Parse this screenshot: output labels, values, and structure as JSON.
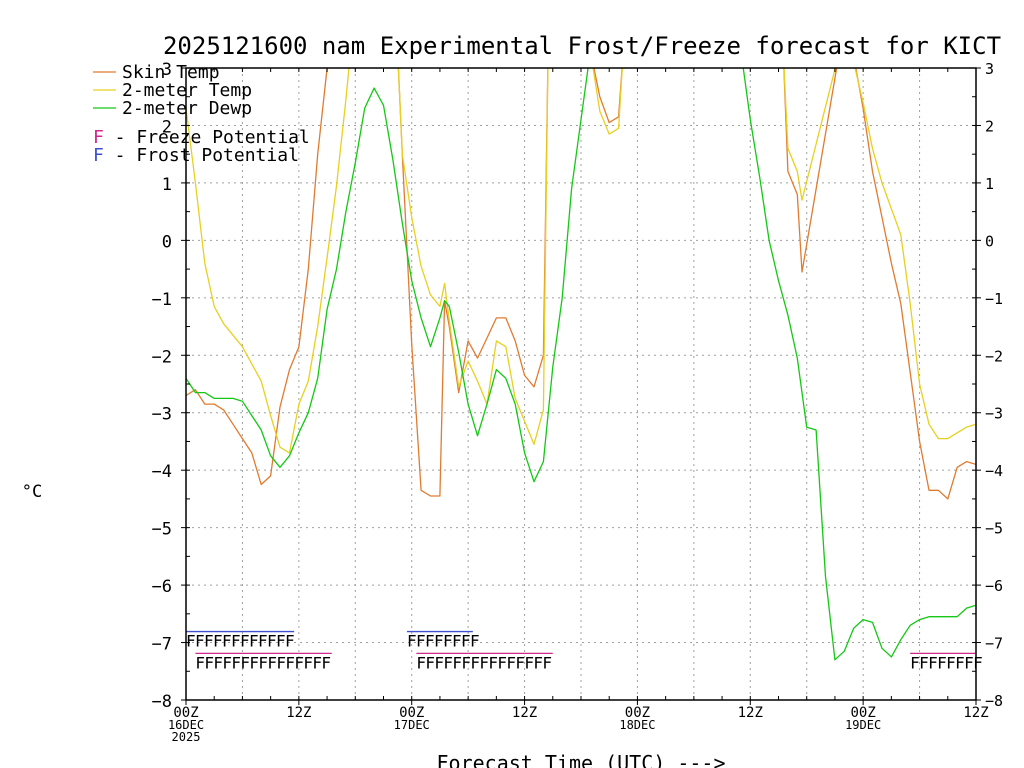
{
  "colors": {
    "skin": "#e07b30",
    "temp": "#e8d020",
    "dewp": "#14c814",
    "freeze": "#d0288c",
    "frost": "#3c50d0",
    "grid": "#a0a0a0",
    "axis": "#000000"
  },
  "chart_data": {
    "type": "line",
    "title": "2025121600 nam Experimental Frost/Freeze forecast for KICT",
    "ylabel": "°C",
    "xlabel": "Forecast Time (UTC) --->",
    "ylim": [
      -8,
      3
    ],
    "xlim": [
      0,
      84
    ],
    "yticks": [
      -8,
      -7,
      -6,
      -5,
      -4,
      -3,
      -2,
      -1,
      0,
      1,
      2,
      3
    ],
    "xticks": [
      {
        "x": 0,
        "lines": [
          "00Z",
          "16DEC",
          "2025"
        ]
      },
      {
        "x": 12,
        "lines": [
          "12Z"
        ]
      },
      {
        "x": 24,
        "lines": [
          "00Z",
          "17DEC"
        ]
      },
      {
        "x": 36,
        "lines": [
          "12Z"
        ]
      },
      {
        "x": 48,
        "lines": [
          "00Z",
          "18DEC"
        ]
      },
      {
        "x": 60,
        "lines": [
          "12Z"
        ]
      },
      {
        "x": 72,
        "lines": [
          "00Z",
          "19DEC"
        ]
      },
      {
        "x": 84,
        "lines": [
          "12Z"
        ]
      }
    ],
    "legend": [
      {
        "key": "skin",
        "label": "Skin Temp"
      },
      {
        "key": "temp",
        "label": "2-meter Temp"
      },
      {
        "key": "dewp",
        "label": "2-meter Dewp"
      }
    ],
    "flag_legend": [
      {
        "key": "freeze",
        "letter": "F",
        "label": " - Freeze Potential"
      },
      {
        "key": "frost",
        "letter": "F",
        "label": " - Frost Potential"
      }
    ],
    "series": [
      {
        "name": "Skin Temp",
        "key": "skin",
        "x": [
          0,
          1,
          2,
          3,
          4,
          5,
          6,
          7,
          8,
          9,
          10,
          11,
          12,
          13,
          14,
          15,
          16,
          17,
          17.5,
          22.5,
          23,
          24,
          25,
          26,
          27,
          27.5,
          28,
          29,
          30,
          31,
          32,
          33,
          34,
          35,
          36,
          37,
          38,
          38.5,
          43,
          44,
          45,
          46,
          46.5,
          63.5,
          64,
          65,
          65.5,
          69.5,
          70,
          71,
          72,
          73,
          74,
          75,
          76,
          77,
          78,
          79,
          80,
          81,
          82,
          83,
          84
        ],
        "y": [
          -2.7,
          -2.6,
          -2.85,
          -2.85,
          -2.95,
          -3.2,
          -3.45,
          -3.7,
          -4.25,
          -4.1,
          -2.9,
          -2.25,
          -1.85,
          -0.5,
          1.5,
          3.0,
          3.2,
          3.2,
          3.3,
          3.3,
          1.5,
          -1.8,
          -4.35,
          -4.45,
          -4.45,
          -1.05,
          -1.5,
          -2.65,
          -1.75,
          -2.05,
          -1.7,
          -1.35,
          -1.35,
          -1.75,
          -2.35,
          -2.55,
          -2.0,
          3.3,
          3.3,
          2.5,
          2.05,
          2.15,
          3.3,
          3.3,
          1.2,
          0.8,
          -0.55,
          3.3,
          3.3,
          3.2,
          2.3,
          1.2,
          0.4,
          -0.4,
          -1.1,
          -2.3,
          -3.5,
          -4.35,
          -4.35,
          -4.5,
          -3.95,
          -3.85,
          -3.9
        ]
      },
      {
        "name": "2-meter Temp",
        "key": "temp",
        "x": [
          0,
          1,
          2,
          3,
          4,
          5,
          6,
          7,
          8,
          9,
          10,
          11,
          12,
          13,
          14,
          15,
          16,
          17,
          17.5,
          22.5,
          23,
          24,
          25,
          26,
          27,
          27.5,
          28,
          29,
          30,
          31,
          32,
          33,
          34,
          35,
          36,
          37,
          38,
          38.5,
          43,
          44,
          45,
          46,
          46.5,
          63.5,
          64,
          65,
          65.5,
          69.5,
          70,
          71,
          72,
          73,
          74,
          75,
          76,
          77,
          78,
          79,
          80,
          81,
          82,
          83,
          84
        ],
        "y": [
          2.3,
          1.0,
          -0.4,
          -1.15,
          -1.45,
          -1.65,
          -1.85,
          -2.15,
          -2.45,
          -3.05,
          -3.6,
          -3.7,
          -2.85,
          -2.45,
          -1.5,
          -0.3,
          0.95,
          2.45,
          3.3,
          3.3,
          1.5,
          0.4,
          -0.45,
          -0.95,
          -1.15,
          -0.75,
          -1.4,
          -2.55,
          -2.1,
          -2.45,
          -2.85,
          -1.75,
          -1.85,
          -2.75,
          -3.15,
          -3.55,
          -2.95,
          3.3,
          3.3,
          2.25,
          1.85,
          1.95,
          3.3,
          3.3,
          1.6,
          1.2,
          0.7,
          3.3,
          3.3,
          3.1,
          2.4,
          1.6,
          1.0,
          0.55,
          0.1,
          -1.1,
          -2.5,
          -3.2,
          -3.45,
          -3.45,
          -3.35,
          -3.25,
          -3.2
        ]
      },
      {
        "name": "2-meter Dewp",
        "key": "dewp",
        "x": [
          0,
          1,
          2,
          3,
          4,
          5,
          6,
          7,
          8,
          9,
          10,
          11,
          12,
          13,
          14,
          15,
          16,
          17,
          18,
          19,
          20,
          21,
          22,
          23,
          24,
          25,
          26,
          27,
          27.5,
          28,
          29,
          30,
          31,
          32,
          33,
          34,
          35,
          36,
          37,
          38,
          39,
          40,
          41,
          42,
          43,
          44,
          45,
          46,
          47,
          48,
          49,
          50,
          51,
          52,
          53,
          54,
          55,
          56,
          57,
          58,
          59,
          60,
          61,
          62,
          63,
          64,
          65,
          66,
          67,
          68,
          69,
          70,
          71,
          72,
          73,
          74,
          75,
          76,
          77,
          78,
          79,
          80,
          81,
          82,
          83,
          84
        ],
        "y": [
          -2.4,
          -2.65,
          -2.65,
          -2.75,
          -2.75,
          -2.75,
          -2.8,
          -3.05,
          -3.3,
          -3.75,
          -3.95,
          -3.75,
          -3.35,
          -3.0,
          -2.4,
          -1.2,
          -0.5,
          0.5,
          1.35,
          2.3,
          2.65,
          2.35,
          1.4,
          0.3,
          -0.7,
          -1.35,
          -1.85,
          -1.35,
          -1.05,
          -1.15,
          -1.95,
          -2.85,
          -3.4,
          -2.85,
          -2.25,
          -2.4,
          -2.85,
          -3.7,
          -4.2,
          -3.85,
          -2.2,
          -1.0,
          0.9,
          2.1,
          3.3,
          3.3,
          3.3,
          3.3,
          3.3,
          3.3,
          3.3,
          3.3,
          3.3,
          3.3,
          3.3,
          3.3,
          3.3,
          3.3,
          3.3,
          3.3,
          3.3,
          2.1,
          1.1,
          0.0,
          -0.7,
          -1.3,
          -2.05,
          -3.25,
          -3.3,
          -5.85,
          -7.3,
          -7.15,
          -6.75,
          -6.6,
          -6.65,
          -7.1,
          -7.25,
          -6.95,
          -6.7,
          -6.6,
          -6.55,
          -6.55,
          -6.55,
          -6.55,
          -6.4,
          -6.35
        ]
      }
    ],
    "flag_rows": [
      {
        "key": "frost",
        "letter": "F",
        "ranges": [
          [
            0,
            11.5
          ],
          [
            23.5,
            30.5
          ]
        ]
      },
      {
        "key": "freeze",
        "letter": "F",
        "ranges": [
          [
            1,
            15.5
          ],
          [
            24.5,
            39
          ],
          [
            77,
            84
          ]
        ]
      }
    ]
  }
}
